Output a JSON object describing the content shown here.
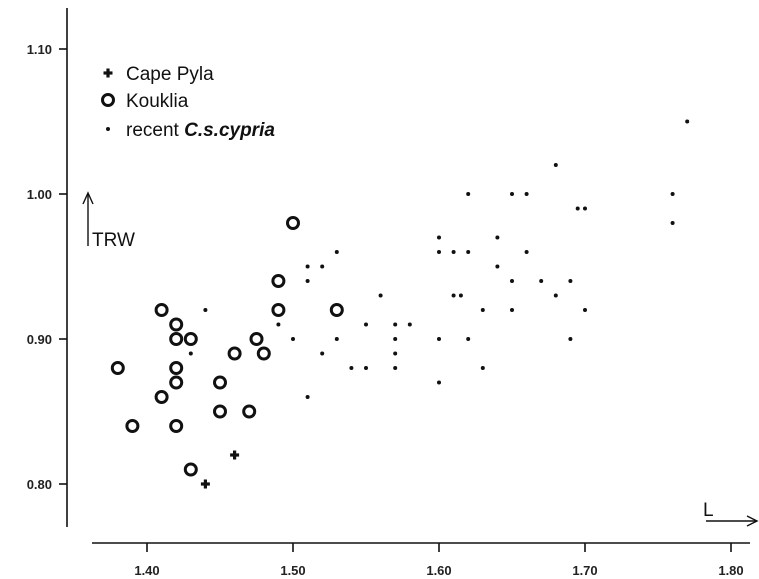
{
  "chart_data": {
    "type": "scatter",
    "xlabel": "L",
    "ylabel": "TRW",
    "xlim": [
      1.35,
      1.8
    ],
    "ylim": [
      0.77,
      1.12
    ],
    "x_ticks": [
      "1.40",
      "1.50",
      "1.60",
      "1.70",
      "1.80"
    ],
    "y_ticks": [
      "1.10",
      "1.00",
      "0.90",
      "0.80"
    ],
    "legend_position": "top-left",
    "grid": false,
    "series": [
      {
        "name": "Cape Pyla",
        "marker": "plus",
        "points": [
          [
            1.44,
            0.8
          ],
          [
            1.46,
            0.82
          ]
        ]
      },
      {
        "name": "Kouklia",
        "marker": "circle",
        "points": [
          [
            1.38,
            0.88
          ],
          [
            1.39,
            0.84
          ],
          [
            1.41,
            0.92
          ],
          [
            1.41,
            0.86
          ],
          [
            1.42,
            0.91
          ],
          [
            1.42,
            0.9
          ],
          [
            1.42,
            0.88
          ],
          [
            1.42,
            0.87
          ],
          [
            1.42,
            0.84
          ],
          [
            1.43,
            0.9
          ],
          [
            1.43,
            0.81
          ],
          [
            1.45,
            0.87
          ],
          [
            1.45,
            0.85
          ],
          [
            1.46,
            0.89
          ],
          [
            1.47,
            0.85
          ],
          [
            1.475,
            0.9
          ],
          [
            1.48,
            0.89
          ],
          [
            1.49,
            0.94
          ],
          [
            1.49,
            0.92
          ],
          [
            1.5,
            0.98
          ],
          [
            1.53,
            0.92
          ]
        ]
      },
      {
        "name": "recent C.s.cypria",
        "marker": "dot",
        "points": [
          [
            1.43,
            0.89
          ],
          [
            1.44,
            0.92
          ],
          [
            1.49,
            0.91
          ],
          [
            1.5,
            0.9
          ],
          [
            1.51,
            0.95
          ],
          [
            1.51,
            0.94
          ],
          [
            1.51,
            0.86
          ],
          [
            1.52,
            0.95
          ],
          [
            1.52,
            0.89
          ],
          [
            1.53,
            0.96
          ],
          [
            1.53,
            0.9
          ],
          [
            1.54,
            0.88
          ],
          [
            1.55,
            0.91
          ],
          [
            1.55,
            0.88
          ],
          [
            1.56,
            0.93
          ],
          [
            1.57,
            0.91
          ],
          [
            1.57,
            0.9
          ],
          [
            1.57,
            0.89
          ],
          [
            1.57,
            0.88
          ],
          [
            1.58,
            0.91
          ],
          [
            1.6,
            0.97
          ],
          [
            1.6,
            0.96
          ],
          [
            1.6,
            0.9
          ],
          [
            1.6,
            0.87
          ],
          [
            1.61,
            0.96
          ],
          [
            1.61,
            0.93
          ],
          [
            1.615,
            0.93
          ],
          [
            1.62,
            1.0
          ],
          [
            1.62,
            0.96
          ],
          [
            1.62,
            0.9
          ],
          [
            1.63,
            0.92
          ],
          [
            1.63,
            0.88
          ],
          [
            1.64,
            0.97
          ],
          [
            1.64,
            0.95
          ],
          [
            1.65,
            1.0
          ],
          [
            1.65,
            0.94
          ],
          [
            1.65,
            0.92
          ],
          [
            1.66,
            1.0
          ],
          [
            1.66,
            0.96
          ],
          [
            1.67,
            0.94
          ],
          [
            1.68,
            1.02
          ],
          [
            1.68,
            0.93
          ],
          [
            1.69,
            0.94
          ],
          [
            1.69,
            0.9
          ],
          [
            1.695,
            0.99
          ],
          [
            1.7,
            0.99
          ],
          [
            1.7,
            0.92
          ],
          [
            1.76,
            1.0
          ],
          [
            1.76,
            0.98
          ],
          [
            1.77,
            1.05
          ]
        ]
      }
    ]
  },
  "legend": {
    "cape_pyla": "Cape Pyla",
    "kouklia": "Kouklia",
    "recent_prefix": "recent ",
    "recent_species": "C.s.cypria"
  }
}
